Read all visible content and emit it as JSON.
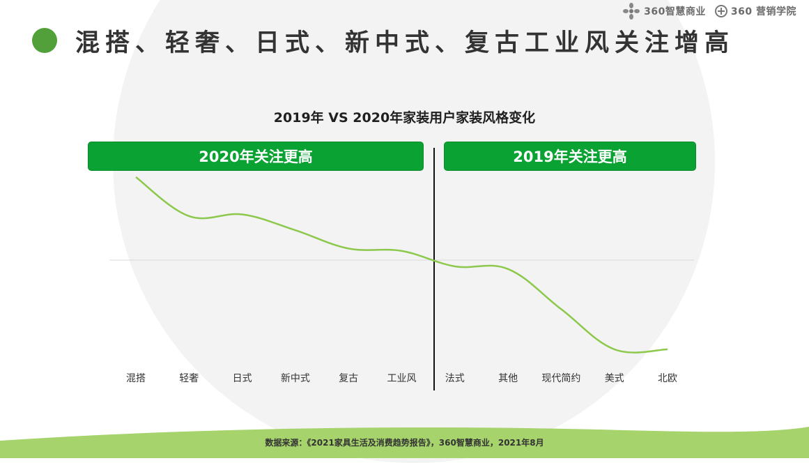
{
  "header": {
    "brand_primary": "360智慧商业",
    "brand_secondary": "360 营销学院",
    "title": "混搭、轻奢、日式、新中式、复古工业风关注增高"
  },
  "colors": {
    "accent_green": "#52a03a",
    "banner_green": "#0ba234",
    "line_green": "#8cc84b",
    "wave_green": "#a6d36b"
  },
  "banners": {
    "left": "2020年关注更高",
    "right": "2019年关注更高"
  },
  "footer": {
    "source": "数据来源：《2021家具生活及消费趋势报告》，360智慧商业，2021年8月"
  },
  "chart_data": {
    "type": "line",
    "title": "2019年 VS 2020年家装用户家装风格变化",
    "categories": [
      "混搭",
      "轻奢",
      "日式",
      "新中式",
      "复古",
      "工业风",
      "法式",
      "其他",
      "现代简约",
      "美式",
      "北欧"
    ],
    "values": [
      1.0,
      0.53,
      0.55,
      0.36,
      0.14,
      0.11,
      -0.07,
      -0.1,
      -0.55,
      -1.0,
      -1.0
    ],
    "zero_line": 0,
    "ylim": [
      -1.2,
      1.0
    ],
    "divider_after_index": 5,
    "grid": false,
    "legend": "none"
  }
}
